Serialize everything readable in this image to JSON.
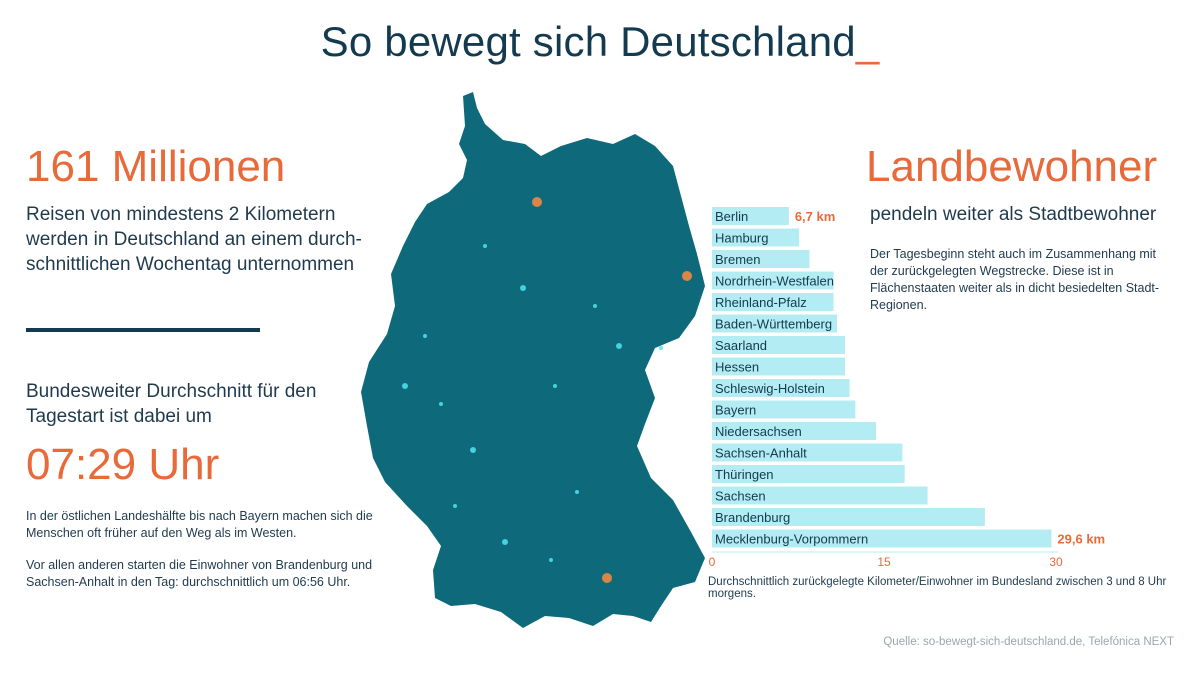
{
  "title": "So bewegt sich Deutschland",
  "title_cursor": "_",
  "left": {
    "big_number": "161 Millionen",
    "description": "Reisen von mindestens 2 Kilometern werden in Deutschland an einem durch-schnittlichen Wochentag unternommen",
    "avg_text": "Bundesweiter Durchschnitt für den Tagestart ist dabei um",
    "time": "07:29 Uhr",
    "note1": "In der östlichen Landeshälfte bis nach Bayern machen sich die Menschen oft früher auf den Weg als im Westen.",
    "note2": "Vor allen anderen starten die Einwohner von Brandenburg und Sachsen-Anhalt in den Tag: durchschnittlich um 06:56 Uhr."
  },
  "right": {
    "headline": "Landbewohner",
    "subheadline": "pendeln weiter als Stadtbewohner",
    "description": "Der Tagesbeginn steht auch im Zusammenhang mit der zurückgelegten Wegstrecke. Diese ist in Flächenstaaten weiter als in dicht besiedelten Stadt-Regionen."
  },
  "chart_caption": "Durchschnittlich zurückgelegte Kilometer/Einwohner im Bundesland zwischen 3 und 8 Uhr morgens.",
  "source": "Quelle: so-bewegt-sich-deutschland.de, Telefónica NEXT",
  "colors": {
    "accent": "#e8693a",
    "dark": "#133a4f",
    "bar": "#b3ecf2",
    "map": "#0e6a7a"
  },
  "chart_data": {
    "type": "bar",
    "orientation": "horizontal",
    "categories": [
      "Berlin",
      "Hamburg",
      "Bremen",
      "Nordrhein-Westfalen",
      "Rheinland-Pfalz",
      "Baden-Württemberg",
      "Saarland",
      "Hessen",
      "Schleswig-Holstein",
      "Bayern",
      "Niedersachsen",
      "Sachsen-Anhalt",
      "Thüringen",
      "Sachsen",
      "Brandenburg",
      "Mecklenburg-Vorpommern"
    ],
    "values": [
      6.7,
      7.6,
      8.5,
      10.6,
      10.6,
      10.9,
      11.6,
      11.6,
      12.0,
      12.5,
      14.3,
      16.6,
      16.8,
      18.8,
      23.8,
      29.6
    ],
    "value_labels": [
      {
        "index": 0,
        "text": "6,7 km"
      },
      {
        "index": 15,
        "text": "29,6 km"
      }
    ],
    "xticks": [
      "0",
      "15",
      "30"
    ],
    "xlim": [
      0,
      30
    ],
    "grid": false
  }
}
